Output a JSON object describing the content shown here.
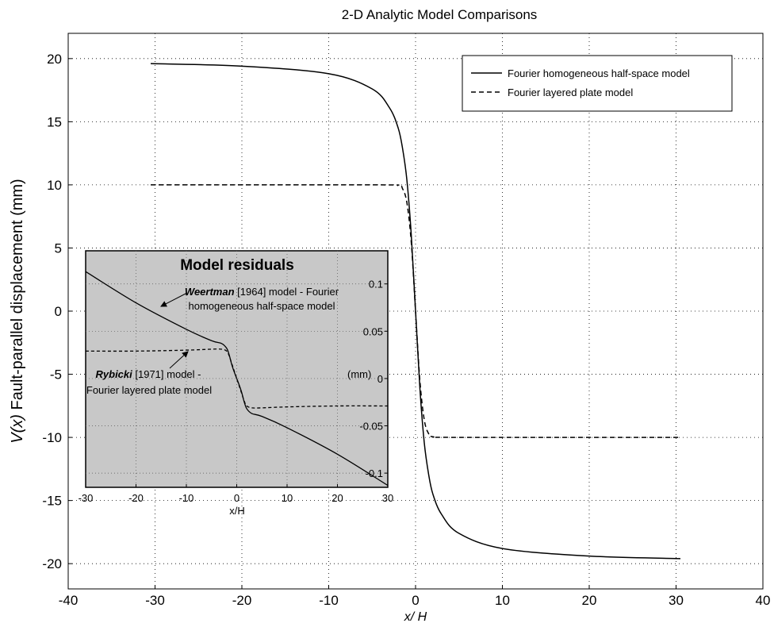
{
  "chart_data": [
    {
      "type": "line",
      "title": "2-D Analytic Model Comparisons",
      "xlabel_var": "x",
      "xlabel_rest": "/ H",
      "ylabel_var": "V(x)",
      "ylabel_rest": " Fault-parallel displacement (mm)",
      "xlim": [
        -40,
        40
      ],
      "ylim": [
        -22,
        22
      ],
      "xticks": [
        -40,
        -30,
        -20,
        -10,
        0,
        10,
        20,
        30,
        40
      ],
      "yticks": [
        -20,
        -15,
        -10,
        -5,
        0,
        5,
        10,
        15,
        20
      ],
      "grid": true,
      "legend": {
        "position": "top-right"
      },
      "series": [
        {
          "name": "Fourier homogeneous half-space model",
          "style": "solid",
          "x": [
            -30.5,
            -20,
            -10,
            -5,
            -3,
            -2,
            -1.5,
            -1,
            -0.5,
            0,
            0.5,
            1,
            1.5,
            2,
            3,
            5,
            10,
            20,
            30.5
          ],
          "y": [
            19.6,
            19.4,
            18.8,
            17.6,
            16.1,
            14.5,
            12.9,
            10.4,
            6.1,
            0,
            -6.1,
            -10.4,
            -12.9,
            -14.5,
            -16.1,
            -17.6,
            -18.8,
            -19.4,
            -19.6
          ]
        },
        {
          "name": "Fourier layered plate model",
          "style": "dashed",
          "x": [
            -30.5,
            -5,
            -2,
            -1.5,
            -1,
            -0.5,
            0,
            0.5,
            1,
            1.5,
            2,
            5,
            30.5
          ],
          "y": [
            10,
            10,
            9.95,
            9.7,
            8.6,
            5.5,
            0,
            -5.5,
            -8.6,
            -9.7,
            -9.95,
            -10,
            -10
          ]
        }
      ]
    },
    {
      "type": "line",
      "title": "Model residuals",
      "xlabel": "x/H",
      "unit_label": "(mm)",
      "xlim": [
        -30,
        30
      ],
      "ylim": [
        -0.115,
        0.135
      ],
      "xticks": [
        -30,
        -20,
        -10,
        0,
        10,
        20,
        30
      ],
      "yticks": [
        -0.1,
        -0.05,
        0,
        0.05,
        0.1
      ],
      "ytick_labels": [
        "-0.1",
        "-0.05",
        "0",
        "0.05",
        "0.1"
      ],
      "grid": true,
      "background": "#c8c8c8",
      "series": [
        {
          "style": "solid",
          "x": [
            -30,
            -20,
            -10,
            -5,
            -3,
            -2,
            -1.5,
            -1,
            -0.5,
            0,
            0.5,
            1,
            1.5,
            2,
            3,
            5,
            10,
            20,
            30
          ],
          "y": [
            0.113,
            0.08,
            0.052,
            0.04,
            0.037,
            0.032,
            0.025,
            0.015,
            0.007,
            0,
            -0.007,
            -0.015,
            -0.025,
            -0.032,
            -0.037,
            -0.04,
            -0.052,
            -0.08,
            -0.113
          ]
        },
        {
          "style": "dashed",
          "x": [
            -30,
            -20,
            -10,
            -5,
            -3,
            -2,
            -1.5,
            -1,
            -0.5,
            0,
            0.5,
            1,
            1.5,
            2,
            3,
            5,
            10,
            20,
            30
          ],
          "y": [
            0.029,
            0.029,
            0.03,
            0.031,
            0.031,
            0.029,
            0.024,
            0.016,
            0.008,
            0,
            -0.008,
            -0.016,
            -0.024,
            -0.029,
            -0.031,
            -0.031,
            -0.03,
            -0.029,
            -0.029
          ]
        }
      ],
      "annotations": [
        {
          "italic": "Weertman",
          "rest": " [1964] model - Fourier",
          "line2": "homogeneous half-space model"
        },
        {
          "italic": "Rybicki",
          "rest": " [1971] model -",
          "line2": "Fourier layered plate model"
        }
      ]
    }
  ]
}
